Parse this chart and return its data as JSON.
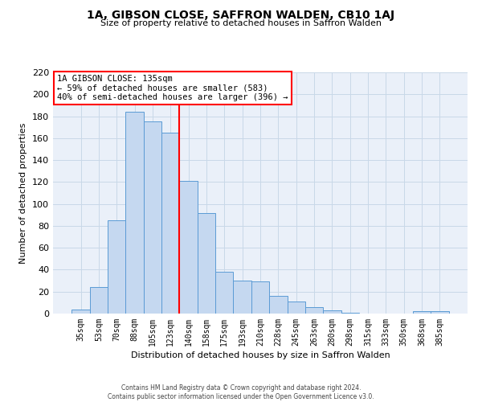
{
  "title": "1A, GIBSON CLOSE, SAFFRON WALDEN, CB10 1AJ",
  "subtitle": "Size of property relative to detached houses in Saffron Walden",
  "xlabel": "Distribution of detached houses by size in Saffron Walden",
  "ylabel": "Number of detached properties",
  "bar_labels": [
    "35sqm",
    "53sqm",
    "70sqm",
    "88sqm",
    "105sqm",
    "123sqm",
    "140sqm",
    "158sqm",
    "175sqm",
    "193sqm",
    "210sqm",
    "228sqm",
    "245sqm",
    "263sqm",
    "280sqm",
    "298sqm",
    "315sqm",
    "333sqm",
    "350sqm",
    "368sqm",
    "385sqm"
  ],
  "bar_values": [
    4,
    24,
    85,
    184,
    175,
    165,
    121,
    92,
    38,
    30,
    29,
    16,
    11,
    6,
    3,
    1,
    0,
    0,
    0,
    2,
    2
  ],
  "bar_color": "#c5d8f0",
  "bar_edge_color": "#5b9bd5",
  "vline_color": "red",
  "vline_x_idx": 6,
  "annotation_title": "1A GIBSON CLOSE: 135sqm",
  "annotation_line1": "← 59% of detached houses are smaller (583)",
  "annotation_line2": "40% of semi-detached houses are larger (396) →",
  "annotation_box_color": "white",
  "annotation_box_edge_color": "red",
  "ylim": [
    0,
    220
  ],
  "yticks": [
    0,
    20,
    40,
    60,
    80,
    100,
    120,
    140,
    160,
    180,
    200,
    220
  ],
  "grid_color": "#c8d8e8",
  "bg_color": "#eaf0f9",
  "footer1": "Contains HM Land Registry data © Crown copyright and database right 2024.",
  "footer2": "Contains public sector information licensed under the Open Government Licence v3.0."
}
